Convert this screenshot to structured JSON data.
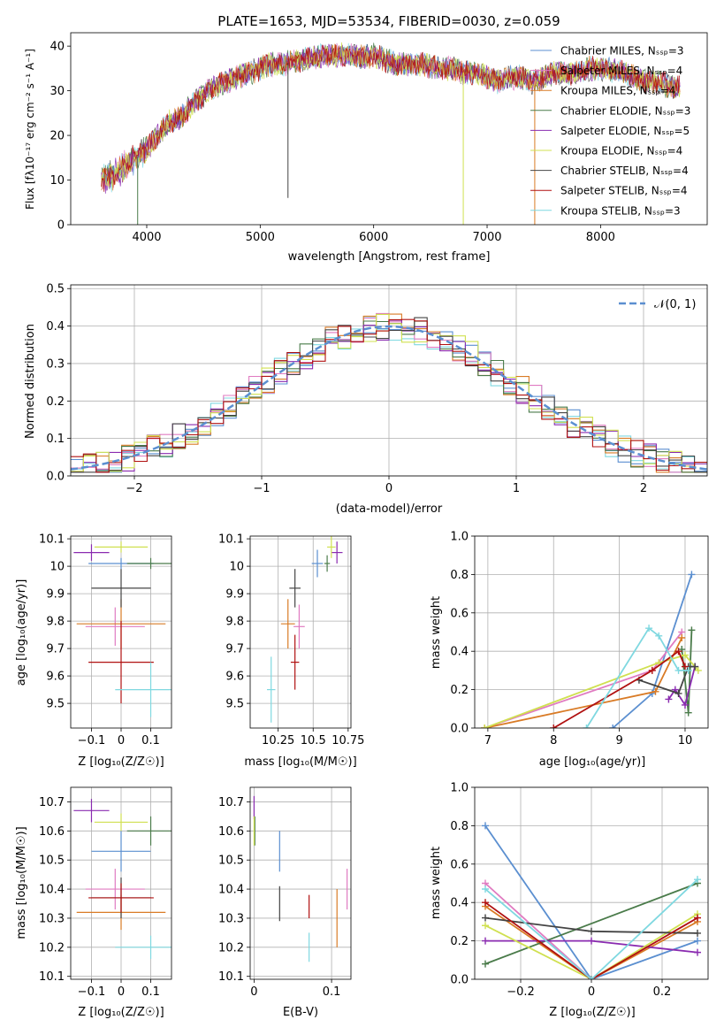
{
  "figure_title": "PLATE=1653, MJD=53534, FIBERID=0030, z=0.059",
  "colors": {
    "series": [
      "#5b8fd0",
      "#e07bc1",
      "#d97b26",
      "#4a7b4a",
      "#8a2bb0",
      "#d0e050",
      "#444444",
      "#b01010",
      "#7fd8e0"
    ],
    "normal_curve": "#5b8fd0",
    "grid": "#b0b0b0"
  },
  "chart_data": [
    {
      "id": "spectrum",
      "type": "line",
      "xlabel": "wavelength [Angstrom, rest frame]",
      "ylabel": "Flux [fλ10⁻¹⁷ erg cm⁻² s⁻¹ A⁻¹]",
      "xlim": [
        3330,
        8940
      ],
      "ylim": [
        0,
        43
      ],
      "xticks": [
        4000,
        5000,
        6000,
        7000,
        8000
      ],
      "yticks": [
        0,
        10,
        20,
        30,
        40
      ],
      "legend_placement": "upper right",
      "legend": [
        "Chabrier MILES, Nₛₛₚ=3",
        "Salpeter MILES, Nₛₛₚ=4",
        "Kroupa MILES, Nₛₛₚ=4",
        "Chabrier ELODIE, Nₛₛₚ=3",
        "Salpeter ELODIE, Nₛₛₚ=5",
        "Kroupa ELODIE, Nₛₛₚ=4",
        "Chabrier STELIB, Nₛₛₚ=4",
        "Salpeter STELIB, Nₛₛₚ=4",
        "Kroupa STELIB, Nₛₛₚ=3"
      ],
      "continuum": [
        [
          3600,
          10
        ],
        [
          3700,
          11
        ],
        [
          3800,
          13
        ],
        [
          3900,
          15
        ],
        [
          4000,
          17
        ],
        [
          4100,
          20
        ],
        [
          4200,
          23
        ],
        [
          4300,
          24
        ],
        [
          4400,
          27
        ],
        [
          4500,
          29
        ],
        [
          4600,
          31
        ],
        [
          4700,
          32
        ],
        [
          4800,
          33
        ],
        [
          4900,
          34
        ],
        [
          5000,
          35
        ],
        [
          5100,
          36
        ],
        [
          5200,
          36
        ],
        [
          5300,
          36.5
        ],
        [
          5400,
          37
        ],
        [
          5500,
          37.5
        ],
        [
          5600,
          38
        ],
        [
          5700,
          38
        ],
        [
          5800,
          38
        ],
        [
          5900,
          37.5
        ],
        [
          6000,
          38
        ],
        [
          6100,
          37
        ],
        [
          6200,
          36
        ],
        [
          6300,
          36
        ],
        [
          6400,
          36
        ],
        [
          6500,
          35.5
        ],
        [
          6600,
          35
        ],
        [
          6700,
          35
        ],
        [
          6800,
          34
        ],
        [
          6900,
          34
        ],
        [
          7000,
          33
        ],
        [
          7100,
          32
        ],
        [
          7200,
          33
        ],
        [
          7300,
          33
        ],
        [
          7400,
          32
        ],
        [
          7500,
          33
        ],
        [
          7600,
          34
        ],
        [
          7700,
          34
        ],
        [
          7800,
          34
        ],
        [
          7900,
          35
        ],
        [
          8000,
          35
        ],
        [
          8100,
          34.5
        ],
        [
          8200,
          34
        ],
        [
          8300,
          33
        ],
        [
          8400,
          32
        ],
        [
          8500,
          32
        ],
        [
          8600,
          31
        ],
        [
          8700,
          30.5
        ]
      ],
      "artifact_drops": [
        {
          "x": 3920,
          "y_min": 0,
          "series": 3
        },
        {
          "x": 6790,
          "y_min": 0,
          "series": 5
        },
        {
          "x": 7420,
          "y_min": 0,
          "series": 2
        },
        {
          "x": 5245,
          "y_min": 6,
          "series": 6
        }
      ]
    },
    {
      "id": "residual-histogram",
      "type": "histogram",
      "xlabel": "(data-model)/error",
      "ylabel": "Normed distribution",
      "xlim": [
        -2.5,
        2.5
      ],
      "ylim": [
        0,
        0.51
      ],
      "xticks": [
        -2,
        -1,
        0,
        1,
        2
      ],
      "yticks": [
        0.0,
        0.1,
        0.2,
        0.3,
        0.4,
        0.5
      ],
      "bin_width": 0.1,
      "legend_label": "𝒩(0, 1)",
      "legend_placement": "upper right",
      "grid": true
    },
    {
      "id": "age-vs-Z",
      "type": "errorbar",
      "xlabel": "Z [log₁₀(Z/Z☉)]",
      "ylabel": "age  [log₁₀(age/yr)]",
      "xlim": [
        -0.17,
        0.17
      ],
      "ylim": [
        9.41,
        10.11
      ],
      "xticks": [
        -0.1,
        0.0,
        0.1
      ],
      "yticks": [
        9.5,
        9.6,
        9.7,
        9.8,
        9.9,
        10.0,
        10.1
      ],
      "points": [
        {
          "s": 0,
          "x": 0.0,
          "xerr": 0.11,
          "y": 10.01,
          "yerr": 0.02
        },
        {
          "s": 1,
          "x": -0.02,
          "xerr": 0.1,
          "y": 9.78,
          "yerr": 0.07
        },
        {
          "s": 2,
          "x": 0.0,
          "xerr": 0.15,
          "y": 9.79,
          "yerr": 0.09
        },
        {
          "s": 3,
          "x": 0.1,
          "xerr": 0.08,
          "y": 10.01,
          "yerr": 0.02
        },
        {
          "s": 4,
          "x": -0.1,
          "xerr": 0.06,
          "y": 10.05,
          "yerr": 0.03
        },
        {
          "s": 5,
          "x": 0.0,
          "xerr": 0.09,
          "y": 10.07,
          "yerr": 0.02
        },
        {
          "s": 6,
          "x": 0.0,
          "xerr": 0.1,
          "y": 9.92,
          "yerr": 0.07
        },
        {
          "s": 7,
          "x": 0.0,
          "xerr": 0.11,
          "y": 9.65,
          "yerr": 0.15
        },
        {
          "s": 8,
          "x": 0.1,
          "xerr": 0.12,
          "y": 9.55,
          "yerr": 0.1
        }
      ]
    },
    {
      "id": "age-vs-mass",
      "type": "errorbar",
      "xlabel": "mass [log₁₀(M/M☉)]",
      "ylabel": "",
      "xlim": [
        10.05,
        10.77
      ],
      "ylim": [
        9.41,
        10.11
      ],
      "xticks": [
        10.25,
        10.5,
        10.75
      ],
      "yticks": [
        9.5,
        9.6,
        9.7,
        9.8,
        9.9,
        10.0,
        10.1
      ],
      "points": [
        {
          "s": 0,
          "x": 10.53,
          "xerr": 0.04,
          "y": 10.01,
          "yerr": 0.05
        },
        {
          "s": 1,
          "x": 10.4,
          "xerr": 0.04,
          "y": 9.78,
          "yerr": 0.08
        },
        {
          "s": 2,
          "x": 10.32,
          "xerr": 0.05,
          "y": 9.79,
          "yerr": 0.09
        },
        {
          "s": 3,
          "x": 10.6,
          "xerr": 0.02,
          "y": 10.01,
          "yerr": 0.03
        },
        {
          "s": 4,
          "x": 10.67,
          "xerr": 0.04,
          "y": 10.05,
          "yerr": 0.04
        },
        {
          "s": 5,
          "x": 10.63,
          "xerr": 0.03,
          "y": 10.07,
          "yerr": 0.04
        },
        {
          "s": 6,
          "x": 10.37,
          "xerr": 0.04,
          "y": 9.92,
          "yerr": 0.07
        },
        {
          "s": 7,
          "x": 10.37,
          "xerr": 0.03,
          "y": 9.65,
          "yerr": 0.1
        },
        {
          "s": 8,
          "x": 10.2,
          "xerr": 0.03,
          "y": 9.55,
          "yerr": 0.12
        }
      ]
    },
    {
      "id": "mass-weight-vs-age",
      "type": "line",
      "xlabel": "age  [log₁₀(age/yr)]",
      "ylabel": "mass weight",
      "xlim": [
        6.8,
        10.35
      ],
      "ylim": [
        0,
        1.0
      ],
      "xticks": [
        7,
        8,
        9,
        10
      ],
      "yticks": [
        0.0,
        0.2,
        0.4,
        0.6,
        0.8,
        1.0
      ],
      "series": [
        {
          "s": 0,
          "x": [
            8.9,
            9.5,
            10.1
          ],
          "y": [
            0.0,
            0.18,
            0.8
          ]
        },
        {
          "s": 1,
          "x": [
            6.95,
            9.5,
            9.95
          ],
          "y": [
            0.0,
            0.3,
            0.5
          ]
        },
        {
          "s": 2,
          "x": [
            6.95,
            9.55,
            9.95
          ],
          "y": [
            0.0,
            0.19,
            0.47
          ]
        },
        {
          "s": 3,
          "x": [
            9.95,
            10.05,
            10.1
          ],
          "y": [
            0.41,
            0.08,
            0.51
          ]
        },
        {
          "s": 4,
          "x": [
            9.75,
            9.85,
            10.0,
            10.15
          ],
          "y": [
            0.15,
            0.2,
            0.12,
            0.32
          ]
        },
        {
          "s": 5,
          "x": [
            6.95,
            9.6,
            10.0,
            10.2
          ],
          "y": [
            0.0,
            0.34,
            0.38,
            0.3
          ]
        },
        {
          "s": 6,
          "x": [
            9.3,
            9.9,
            10.05,
            10.15
          ],
          "y": [
            0.25,
            0.18,
            0.32,
            0.32
          ]
        },
        {
          "s": 7,
          "x": [
            8.0,
            9.5,
            9.9,
            10.0
          ],
          "y": [
            0.0,
            0.3,
            0.4,
            0.32
          ]
        },
        {
          "s": 8,
          "x": [
            8.5,
            9.45,
            9.6,
            9.9,
            10.05
          ],
          "y": [
            0.0,
            0.52,
            0.48,
            0.3,
            0.3
          ]
        }
      ]
    },
    {
      "id": "mass-vs-Z",
      "type": "errorbar",
      "xlabel": "Z [log₁₀(Z/Z☉)]",
      "ylabel": "mass [log₁₀(M/M☉)]",
      "xlim": [
        -0.17,
        0.17
      ],
      "ylim": [
        10.09,
        10.75
      ],
      "xticks": [
        -0.1,
        0.0,
        0.1
      ],
      "yticks": [
        10.1,
        10.2,
        10.3,
        10.4,
        10.5,
        10.6,
        10.7
      ],
      "points": [
        {
          "s": 0,
          "x": 0.0,
          "xerr": 0.1,
          "y": 10.53,
          "yerr": 0.07
        },
        {
          "s": 1,
          "x": -0.02,
          "xerr": 0.1,
          "y": 10.4,
          "yerr": 0.07
        },
        {
          "s": 2,
          "x": 0.0,
          "xerr": 0.15,
          "y": 10.32,
          "yerr": 0.06
        },
        {
          "s": 3,
          "x": 0.1,
          "xerr": 0.08,
          "y": 10.6,
          "yerr": 0.05
        },
        {
          "s": 4,
          "x": -0.1,
          "xerr": 0.06,
          "y": 10.67,
          "yerr": 0.04
        },
        {
          "s": 5,
          "x": 0.0,
          "xerr": 0.09,
          "y": 10.63,
          "yerr": 0.03
        },
        {
          "s": 6,
          "x": 0.0,
          "xerr": 0.1,
          "y": 10.37,
          "yerr": 0.07
        },
        {
          "s": 7,
          "x": 0.0,
          "xerr": 0.11,
          "y": 10.37,
          "yerr": 0.05
        },
        {
          "s": 8,
          "x": 0.1,
          "xerr": 0.12,
          "y": 10.2,
          "yerr": 0.04
        }
      ]
    },
    {
      "id": "mass-vs-ebv",
      "type": "errorbar",
      "xlabel": "E(B-V)",
      "ylabel": "",
      "xlim": [
        -0.005,
        0.125
      ],
      "ylim": [
        10.09,
        10.75
      ],
      "xticks": [
        0.0,
        0.1
      ],
      "yticks": [
        10.1,
        10.2,
        10.3,
        10.4,
        10.5,
        10.6,
        10.7
      ],
      "points": [
        {
          "s": 0,
          "x": 0.033,
          "xerr": 0,
          "y": 10.53,
          "yerr": 0.07
        },
        {
          "s": 1,
          "x": 0.12,
          "xerr": 0,
          "y": 10.4,
          "yerr": 0.07
        },
        {
          "s": 2,
          "x": 0.107,
          "xerr": 0,
          "y": 10.3,
          "yerr": 0.1
        },
        {
          "s": 3,
          "x": 0.001,
          "xerr": 0,
          "y": 10.6,
          "yerr": 0.05
        },
        {
          "s": 4,
          "x": 0.0,
          "xerr": 0,
          "y": 10.68,
          "yerr": 0.04
        },
        {
          "s": 5,
          "x": 0.0,
          "xerr": 0,
          "y": 10.6,
          "yerr": 0.05
        },
        {
          "s": 6,
          "x": 0.033,
          "xerr": 0,
          "y": 10.35,
          "yerr": 0.06
        },
        {
          "s": 7,
          "x": 0.071,
          "xerr": 0,
          "y": 10.34,
          "yerr": 0.04
        },
        {
          "s": 8,
          "x": 0.071,
          "xerr": 0,
          "y": 10.2,
          "yerr": 0.05
        }
      ]
    },
    {
      "id": "mass-weight-vs-Z",
      "type": "line",
      "xlabel": "Z [log₁₀(Z/Z☉)]",
      "ylabel": "mass weight",
      "xlim": [
        -0.33,
        0.33
      ],
      "ylim": [
        0,
        1.0
      ],
      "xticks": [
        -0.2,
        0.0,
        0.2
      ],
      "yticks": [
        0.0,
        0.2,
        0.4,
        0.6,
        0.8,
        1.0
      ],
      "series": [
        {
          "s": 0,
          "x": [
            -0.3,
            0.0,
            0.3
          ],
          "y": [
            0.8,
            0.0,
            0.2
          ]
        },
        {
          "s": 1,
          "x": [
            -0.3,
            0.0,
            0.3
          ],
          "y": [
            0.5,
            0.0,
            0.32
          ]
        },
        {
          "s": 2,
          "x": [
            -0.3,
            0.0,
            0.3
          ],
          "y": [
            0.38,
            0.0,
            0.3
          ]
        },
        {
          "s": 3,
          "x": [
            -0.3,
            0.3
          ],
          "y": [
            0.08,
            0.5
          ]
        },
        {
          "s": 4,
          "x": [
            -0.3,
            0.0,
            0.3
          ],
          "y": [
            0.2,
            0.2,
            0.14
          ]
        },
        {
          "s": 5,
          "x": [
            -0.3,
            0.0,
            0.3
          ],
          "y": [
            0.28,
            0.0,
            0.34
          ]
        },
        {
          "s": 6,
          "x": [
            -0.3,
            0.0,
            0.3
          ],
          "y": [
            0.32,
            0.25,
            0.24
          ]
        },
        {
          "s": 7,
          "x": [
            -0.3,
            0.0,
            0.3
          ],
          "y": [
            0.4,
            0.0,
            0.32
          ]
        },
        {
          "s": 8,
          "x": [
            -0.3,
            0.0,
            0.3
          ],
          "y": [
            0.47,
            0.0,
            0.52
          ]
        }
      ]
    }
  ]
}
